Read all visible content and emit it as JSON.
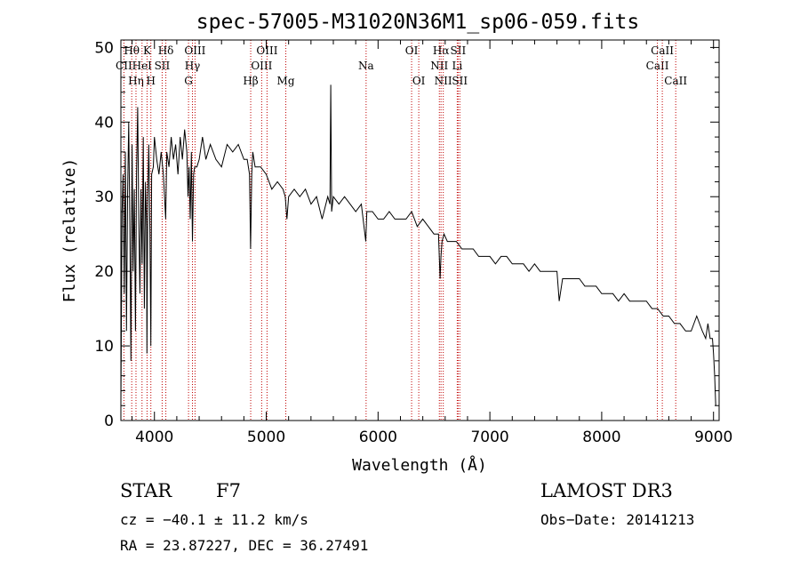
{
  "chart_data": {
    "type": "line",
    "title": "spec-57005-M31020N36M1_sp06-059.fits",
    "xlabel": "Wavelength (Å)",
    "ylabel": "Flux (relative)",
    "xlim": [
      3700,
      9050
    ],
    "ylim": [
      0,
      51
    ],
    "xticks": [
      4000,
      5000,
      6000,
      7000,
      8000,
      9000
    ],
    "yticks": [
      0,
      10,
      20,
      30,
      40,
      50
    ],
    "series": [
      {
        "name": "spectrum",
        "x": [
          3700,
          3710,
          3720,
          3730,
          3740,
          3750,
          3760,
          3770,
          3780,
          3790,
          3800,
          3810,
          3820,
          3830,
          3840,
          3850,
          3860,
          3870,
          3880,
          3890,
          3900,
          3910,
          3920,
          3930,
          3933,
          3940,
          3950,
          3960,
          3968,
          3975,
          3990,
          4000,
          4020,
          4040,
          4060,
          4080,
          4101,
          4110,
          4130,
          4150,
          4170,
          4190,
          4210,
          4230,
          4250,
          4270,
          4290,
          4300,
          4310,
          4320,
          4330,
          4340,
          4350,
          4360,
          4380,
          4400,
          4430,
          4460,
          4500,
          4550,
          4600,
          4650,
          4700,
          4750,
          4800,
          4830,
          4850,
          4860,
          4870,
          4880,
          4900,
          4950,
          5000,
          5050,
          5100,
          5150,
          5170,
          5185,
          5200,
          5250,
          5300,
          5350,
          5400,
          5450,
          5500,
          5550,
          5570,
          5577,
          5585,
          5600,
          5650,
          5700,
          5750,
          5800,
          5850,
          5890,
          5900,
          5950,
          6000,
          6050,
          6100,
          6150,
          6200,
          6250,
          6300,
          6350,
          6400,
          6450,
          6500,
          6540,
          6555,
          6563,
          6572,
          6590,
          6620,
          6650,
          6700,
          6750,
          6800,
          6850,
          6900,
          6950,
          7000,
          7050,
          7100,
          7150,
          7200,
          7250,
          7300,
          7350,
          7400,
          7450,
          7500,
          7550,
          7600,
          7620,
          7650,
          7700,
          7750,
          7800,
          7850,
          7900,
          7950,
          8000,
          8050,
          8100,
          8150,
          8200,
          8250,
          8300,
          8350,
          8400,
          8450,
          8500,
          8550,
          8600,
          8650,
          8700,
          8750,
          8800,
          8850,
          8900,
          8930,
          8950,
          8970,
          8990,
          9000,
          9010,
          9020
        ],
        "y": [
          2,
          28,
          33,
          17,
          36,
          12,
          30,
          40,
          26,
          8,
          37,
          20,
          31,
          12,
          33,
          42,
          27,
          17,
          31,
          21,
          38,
          15,
          32,
          26,
          9,
          30,
          37,
          25,
          10,
          33,
          34,
          38,
          35,
          33,
          36,
          33,
          27,
          36,
          34,
          38,
          35,
          37,
          33,
          38,
          35,
          39,
          36,
          30,
          34,
          27,
          36,
          24,
          33,
          34,
          34,
          35,
          38,
          35,
          37,
          35,
          34,
          37,
          36,
          37,
          35,
          35,
          33,
          23,
          33,
          36,
          34,
          34,
          33,
          31,
          32,
          31,
          30,
          27,
          30,
          31,
          30,
          31,
          29,
          30,
          27,
          30,
          29,
          45,
          28,
          30,
          29,
          30,
          29,
          28,
          29,
          24,
          28,
          28,
          27,
          27,
          28,
          27,
          27,
          27,
          28,
          26,
          27,
          26,
          25,
          25,
          19,
          22,
          24,
          25,
          24,
          24,
          24,
          23,
          23,
          23,
          22,
          22,
          22,
          21,
          22,
          22,
          21,
          21,
          21,
          20,
          21,
          20,
          20,
          20,
          20,
          16,
          19,
          19,
          19,
          19,
          18,
          18,
          18,
          17,
          17,
          17,
          16,
          17,
          16,
          16,
          16,
          16,
          15,
          15,
          14,
          14,
          13,
          13,
          12,
          12,
          14,
          12,
          11,
          13,
          11,
          11,
          9,
          6,
          2
        ]
      }
    ],
    "lines": [
      {
        "name": "CII",
        "wl": 3727,
        "row": 1
      },
      {
        "name": "Hθ",
        "wl": 3797,
        "row": 0
      },
      {
        "name": "Hη",
        "wl": 3835,
        "row": 2
      },
      {
        "name": "HeI",
        "wl": 3889,
        "row": 1
      },
      {
        "name": "K",
        "wl": 3934,
        "row": 0
      },
      {
        "name": "H",
        "wl": 3968,
        "row": 2
      },
      {
        "name": "SII",
        "wl": 4069,
        "row": 1
      },
      {
        "name": "Hδ",
        "wl": 4102,
        "row": 0
      },
      {
        "name": "G",
        "wl": 4305,
        "row": 2
      },
      {
        "name": "Hγ",
        "wl": 4340,
        "row": 1
      },
      {
        "name": "OIII",
        "wl": 4363,
        "row": 0
      },
      {
        "name": "Hβ",
        "wl": 4861,
        "row": 2
      },
      {
        "name": "OIII",
        "wl": 4959,
        "row": 1
      },
      {
        "name": "OIII",
        "wl": 5007,
        "row": 0
      },
      {
        "name": "Mg",
        "wl": 5175,
        "row": 2
      },
      {
        "name": "Na",
        "wl": 5893,
        "row": 1
      },
      {
        "name": "OI",
        "wl": 6300,
        "row": 0
      },
      {
        "name": "OI",
        "wl": 6364,
        "row": 2
      },
      {
        "name": "NII",
        "wl": 6548,
        "row": 1
      },
      {
        "name": "Hα",
        "wl": 6563,
        "row": 0
      },
      {
        "name": "NII",
        "wl": 6583,
        "row": 2
      },
      {
        "name": "Li",
        "wl": 6708,
        "row": 1
      },
      {
        "name": "SII",
        "wl": 6716,
        "row": 0
      },
      {
        "name": "SII",
        "wl": 6731,
        "row": 2
      },
      {
        "name": "CaII",
        "wl": 8498,
        "row": 1
      },
      {
        "name": "CaII",
        "wl": 8542,
        "row": 0
      },
      {
        "name": "CaII",
        "wl": 8662,
        "row": 2
      }
    ]
  },
  "info": {
    "class": "STAR",
    "subclass": "F7",
    "survey": "LAMOST DR3",
    "cz": "cz = −40.1 ± 11.2 km/s",
    "obs_date": "Obs−Date: 20141213",
    "radec": "RA =  23.87227, DEC =  36.27491"
  }
}
